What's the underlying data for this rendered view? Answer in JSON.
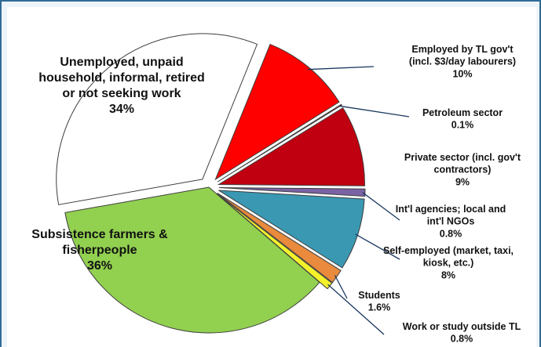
{
  "chart_data": {
    "type": "pie",
    "title": "",
    "legend": "none",
    "slices": [
      {
        "label": [
          "Employed by TL gov't",
          "(incl. $3/day labourers)"
        ],
        "value": 10,
        "value_label": "10%",
        "color": "#ff0000",
        "exploded": true
      },
      {
        "label": [
          "Petroleum sector"
        ],
        "value": 0.1,
        "value_label": "0.1%",
        "color": "#a00010",
        "exploded": true
      },
      {
        "label": [
          "Private sector (incl. gov't",
          "contractors)"
        ],
        "value": 9,
        "value_label": "9%",
        "color": "#c00010",
        "exploded": true
      },
      {
        "label": [
          "Int'l agencies; local and",
          "int'l NGOs"
        ],
        "value": 0.8,
        "value_label": "0.8%",
        "color": "#7b62a4",
        "exploded": true
      },
      {
        "label": [
          "Self-employed (market, taxi,",
          "kiosk, etc.)"
        ],
        "value": 8,
        "value_label": "8%",
        "color": "#3a98b2",
        "exploded": true
      },
      {
        "label": [
          "Students"
        ],
        "value": 1.6,
        "value_label": "1.6%",
        "color": "#e98a3c",
        "exploded": true
      },
      {
        "label": [
          "Work or study outside TL"
        ],
        "value": 0.8,
        "value_label": "0.8%",
        "color": "#f3f12a",
        "exploded": true
      },
      {
        "label": [
          "Subsistence farmers &",
          "fisherpeople"
        ],
        "value": 36,
        "value_label": "36%",
        "color": "#92d050",
        "exploded": false
      },
      {
        "label": [
          "Unemployed, unpaid",
          "household, informal, retired",
          "or not seeking work"
        ],
        "value": 34,
        "value_label": "34%",
        "color": "#ffffff",
        "exploded": true
      }
    ]
  }
}
